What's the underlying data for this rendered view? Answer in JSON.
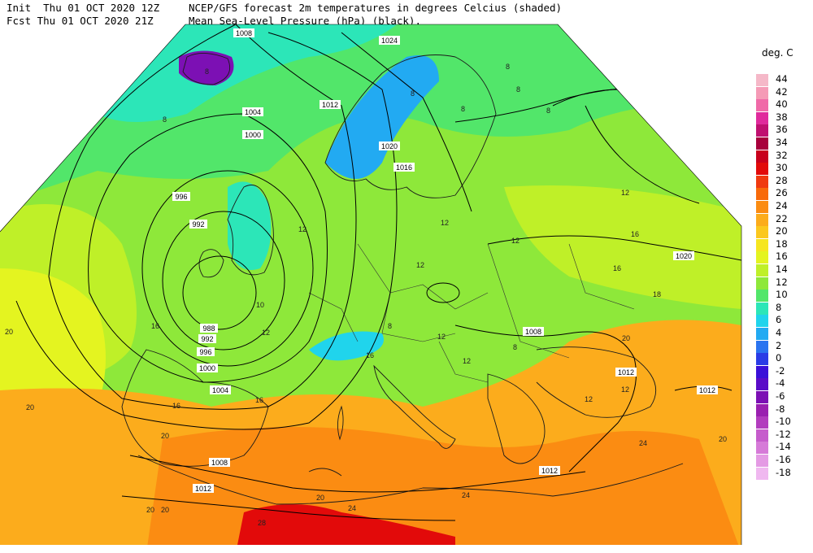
{
  "header": {
    "init_line": "Init  Thu 01 OCT 2020 12Z",
    "fcst_line": "Fcst Thu 01 OCT 2020 21Z",
    "title_line1": "NCEP/GFS forecast 2m temperatures in degrees Celcius (shaded)",
    "title_line2": "Mean Sea-Level Pressure (hPa) (black)."
  },
  "legend": {
    "title": "deg. C",
    "entries": [
      {
        "label": "44",
        "color": "#f5b8c8"
      },
      {
        "label": "42",
        "color": "#f59ab6"
      },
      {
        "label": "40",
        "color": "#f06aa8"
      },
      {
        "label": "38",
        "color": "#e02a9c"
      },
      {
        "label": "36",
        "color": "#c01070"
      },
      {
        "label": "34",
        "color": "#a8003c"
      },
      {
        "label": "32",
        "color": "#c8001c"
      },
      {
        "label": "30",
        "color": "#e20a0a"
      },
      {
        "label": "28",
        "color": "#f03a10"
      },
      {
        "label": "26",
        "color": "#f86a0a"
      },
      {
        "label": "24",
        "color": "#fb8c12"
      },
      {
        "label": "22",
        "color": "#fcac1c"
      },
      {
        "label": "20",
        "color": "#fbc81e"
      },
      {
        "label": "18",
        "color": "#f6e620"
      },
      {
        "label": "16",
        "color": "#e4f420"
      },
      {
        "label": "14",
        "color": "#bff028"
      },
      {
        "label": "12",
        "color": "#8ee83a"
      },
      {
        "label": "10",
        "color": "#52e66a"
      },
      {
        "label": "8",
        "color": "#2ce6b8"
      },
      {
        "label": "6",
        "color": "#20d4ec"
      },
      {
        "label": "4",
        "color": "#22aaf2"
      },
      {
        "label": "2",
        "color": "#2a74f0"
      },
      {
        "label": "0",
        "color": "#2a3ce6"
      },
      {
        "label": "-2",
        "color": "#3a10d8"
      },
      {
        "label": "-4",
        "color": "#5a0cc8"
      },
      {
        "label": "-6",
        "color": "#7c10b4"
      },
      {
        "label": "-8",
        "color": "#9a20b0"
      },
      {
        "label": "-10",
        "color": "#b23cbe"
      },
      {
        "label": "-12",
        "color": "#c65ccc"
      },
      {
        "label": "-14",
        "color": "#d67ad8"
      },
      {
        "label": "-16",
        "color": "#e49ae4"
      },
      {
        "label": "-18",
        "color": "#f0b8f0"
      }
    ]
  },
  "isobar_labels": [
    "1008",
    "1024",
    "1012",
    "1004",
    "1000",
    "996",
    "992",
    "988",
    "992",
    "996",
    "1000",
    "1004",
    "1020",
    "1016",
    "1020",
    "1008",
    "1012",
    "1012",
    "1008",
    "1012",
    "1012"
  ],
  "temp_labels": [
    "8",
    "8",
    "8",
    "8",
    "8",
    "8",
    "8",
    "8",
    "12",
    "12",
    "12",
    "12",
    "12",
    "12",
    "12",
    "12",
    "12",
    "12",
    "16",
    "16",
    "16",
    "16",
    "16",
    "16",
    "18",
    "20",
    "20",
    "20",
    "20",
    "20",
    "20",
    "20",
    "20",
    "24",
    "24",
    "24",
    "28",
    "10",
    "8"
  ]
}
